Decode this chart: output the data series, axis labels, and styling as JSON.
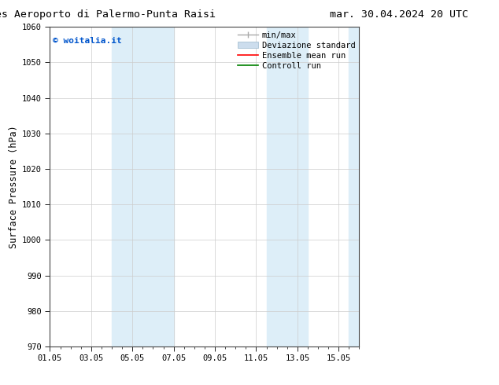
{
  "title_left": "ENS Time Series Aeroporto di Palermo-Punta Raisi",
  "title_right": "mar. 30.04.2024 20 UTC",
  "ylabel": "Surface Pressure (hPa)",
  "ylim": [
    970,
    1060
  ],
  "yticks": [
    970,
    980,
    990,
    1000,
    1010,
    1020,
    1030,
    1040,
    1050,
    1060
  ],
  "xtick_labels": [
    "01.05",
    "03.05",
    "05.05",
    "07.05",
    "09.05",
    "11.05",
    "13.05",
    "15.05"
  ],
  "xtick_positions": [
    0,
    2,
    4,
    6,
    8,
    10,
    12,
    14
  ],
  "xlim": [
    0,
    15
  ],
  "shaded_bands": [
    {
      "xmin": 3.0,
      "xmax": 5.0,
      "color": "#ddeef8"
    },
    {
      "xmin": 5.0,
      "xmax": 6.0,
      "color": "#ddeef8"
    },
    {
      "xmin": 10.5,
      "xmax": 12.0,
      "color": "#ddeef8"
    },
    {
      "xmin": 12.0,
      "xmax": 12.5,
      "color": "#ddeef8"
    },
    {
      "xmin": 14.5,
      "xmax": 15.0,
      "color": "#ddeef8"
    }
  ],
  "watermark": "© woitalia.it",
  "watermark_color": "#0055cc",
  "bg_color": "#ffffff",
  "grid_color": "#cccccc",
  "title_fontsize": 9.5,
  "tick_fontsize": 7.5,
  "ylabel_fontsize": 8.5,
  "legend_fontsize": 7.5
}
